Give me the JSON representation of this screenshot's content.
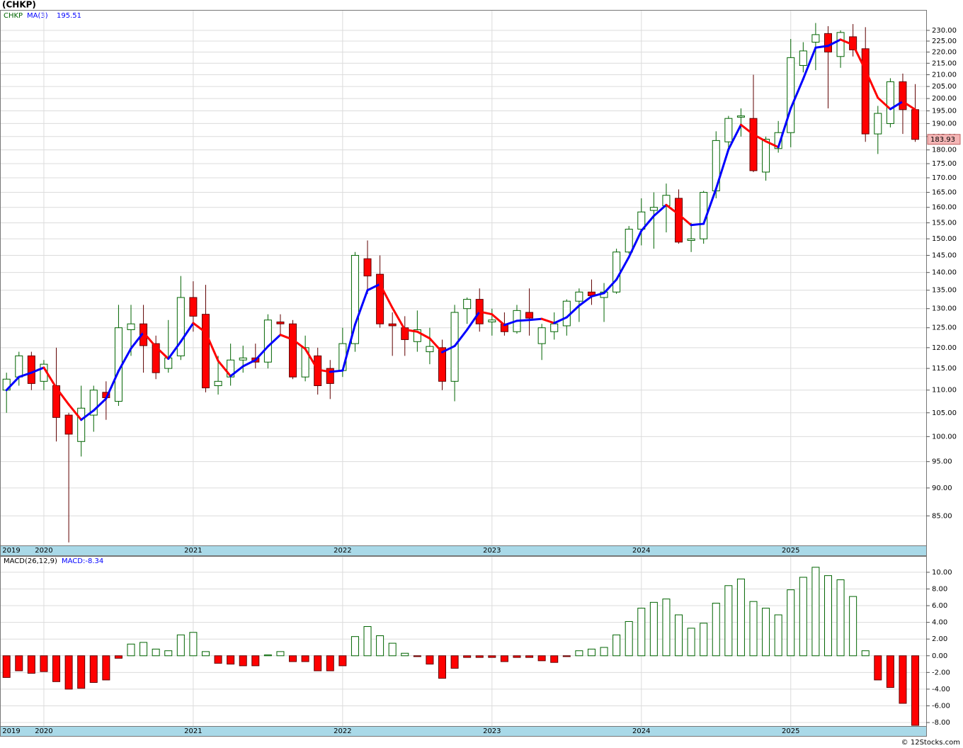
{
  "chart_data": [
    {
      "type": "candlestick",
      "title": "(CHKP)",
      "symbol": "CHKP",
      "footer": "© 12Stocks.com",
      "categories": [
        "2019",
        null,
        null,
        "2020",
        null,
        null,
        null,
        null,
        null,
        null,
        null,
        null,
        null,
        null,
        null,
        "2021",
        null,
        null,
        null,
        null,
        null,
        null,
        null,
        null,
        null,
        null,
        null,
        "2022",
        null,
        null,
        null,
        null,
        null,
        null,
        null,
        null,
        null,
        null,
        null,
        "2023",
        null,
        null,
        null,
        null,
        null,
        null,
        null,
        null,
        null,
        null,
        null,
        "2024",
        null,
        null,
        null,
        null,
        null,
        null,
        null,
        null,
        null,
        null,
        null,
        "2025",
        null,
        null,
        null,
        null,
        null,
        null,
        null,
        null,
        null,
        null
      ],
      "open": [
        110,
        113,
        118,
        112,
        111,
        104.5,
        99,
        104.5,
        109.5,
        107.5,
        124.5,
        126,
        121,
        115,
        118,
        133,
        128.5,
        111,
        113,
        117,
        117.5,
        116.5,
        126.5,
        126,
        113,
        118,
        115,
        114.5,
        121,
        144,
        139.5,
        126,
        125,
        121.5,
        119,
        120,
        112,
        130,
        132.5,
        126.5,
        126,
        124,
        129,
        121,
        124,
        125.5,
        132,
        134.5,
        133,
        134.5,
        146,
        153,
        159,
        160.5,
        163,
        149.5,
        150,
        165.5,
        183,
        192.5,
        192,
        172,
        180.5,
        186.5,
        214,
        224.5,
        228.5,
        218,
        227,
        221.5,
        186,
        190,
        207,
        195.5
      ],
      "high": [
        114,
        119,
        119,
        117,
        120,
        105,
        111,
        111,
        112,
        131,
        131,
        131,
        123,
        127,
        139,
        137.5,
        136.5,
        118,
        121,
        120.5,
        121,
        128.5,
        128.5,
        127,
        123,
        120,
        117,
        125,
        146,
        149.5,
        145,
        129,
        128,
        129.5,
        125,
        122,
        131,
        133,
        135.5,
        130,
        129,
        131,
        135.5,
        126,
        129,
        132.5,
        135.5,
        138,
        137,
        147,
        154,
        163,
        165,
        168,
        166,
        155,
        165.5,
        187,
        193,
        196,
        210,
        185,
        191,
        226,
        224.5,
        233.5,
        232,
        230,
        233,
        231.5,
        197,
        208.5,
        210.5,
        206
      ],
      "low": [
        105,
        111,
        110,
        110,
        99,
        80.5,
        96,
        101,
        103.5,
        106.5,
        118,
        114,
        112.5,
        114,
        117,
        124,
        109.5,
        109,
        111,
        114,
        115,
        115,
        123,
        112.5,
        112,
        109,
        108,
        113,
        119,
        134,
        125,
        118,
        118,
        119,
        116,
        110,
        107.5,
        126,
        124,
        123,
        123,
        123.5,
        123,
        117,
        122,
        123,
        126.5,
        131,
        126.5,
        134,
        145.5,
        148,
        147,
        152,
        148.5,
        146,
        148.5,
        163,
        180,
        185,
        172,
        169,
        179,
        181,
        211,
        212,
        196,
        213,
        218,
        183,
        178.5,
        188.5,
        186,
        183
      ],
      "close": [
        112.5,
        118,
        111.5,
        116,
        104,
        100.5,
        106,
        110,
        108.3,
        125,
        126,
        120.5,
        114,
        117.5,
        133,
        128,
        110.5,
        112,
        117,
        117.5,
        116.5,
        127,
        126,
        113,
        120,
        111,
        111.5,
        121,
        145,
        139,
        126,
        125.5,
        122,
        124.5,
        120.3,
        112,
        129,
        132.5,
        126,
        127,
        124,
        129.5,
        127.5,
        125,
        126,
        132,
        134.5,
        133.5,
        134.5,
        146,
        153,
        158.5,
        160,
        164,
        149,
        150,
        165,
        183.5,
        192,
        193,
        172.5,
        184,
        186.5,
        217.5,
        220.5,
        228,
        220,
        229,
        221,
        186,
        194,
        207,
        195.5,
        183.93
      ],
      "up_color": "#006400",
      "down_color": "#ff0000",
      "down_outline": "#600000",
      "ma": {
        "name": "MA(3)",
        "up_color": "#0000ff",
        "down_color": "#ff0000",
        "values": [
          110,
          113,
          114,
          115.2,
          110.5,
          106.8,
          103.5,
          105.5,
          108.1,
          114.4,
          119.8,
          123.8,
          120.2,
          117.3,
          121.5,
          126.2,
          123.8,
          116.8,
          113.2,
          115.5,
          117,
          120.3,
          123.2,
          122,
          119.7,
          114.7,
          114.2,
          114.5,
          125.8,
          135,
          136.7,
          130.2,
          124.5,
          124,
          122.3,
          118.9,
          120.4,
          124.5,
          129.2,
          128.5,
          125.7,
          126.8,
          127,
          127.3,
          126.2,
          127.7,
          130.8,
          133.3,
          134.2,
          138,
          144.5,
          152.5,
          157.2,
          160.8,
          157.7,
          154.3,
          154.7,
          166.2,
          180.2,
          189.5,
          185.8,
          183.2,
          181,
          196,
          208.2,
          222,
          222.8,
          225.7,
          223.3,
          212,
          200.3,
          195.7,
          198.8,
          195.51
        ]
      },
      "log_scale": true,
      "grid": true,
      "ylim": [
        80,
        239.5
      ],
      "yticks": [
        {
          "value": 85,
          "label": "85.00"
        },
        {
          "value": 90,
          "label": "90.00"
        },
        {
          "value": 95,
          "label": "95.00"
        },
        {
          "value": 100,
          "label": "100.00"
        },
        {
          "value": 105,
          "label": "105.00"
        },
        {
          "value": 110,
          "label": "110.00"
        },
        {
          "value": 115,
          "label": "115.00"
        },
        {
          "value": 120,
          "label": "120.00"
        },
        {
          "value": 125,
          "label": "125.00"
        },
        {
          "value": 130,
          "label": "130.00"
        },
        {
          "value": 135,
          "label": "135.00"
        },
        {
          "value": 140,
          "label": "140.00"
        },
        {
          "value": 145,
          "label": "145.00"
        },
        {
          "value": 150,
          "label": "150.00"
        },
        {
          "value": 155,
          "label": "155.00"
        },
        {
          "value": 160,
          "label": "160.00"
        },
        {
          "value": 165,
          "label": "165.00"
        },
        {
          "value": 170,
          "label": "170.00"
        },
        {
          "value": 175,
          "label": "175.00"
        },
        {
          "value": 180,
          "label": "180.00"
        },
        {
          "value": 185,
          "label": "185.00"
        },
        {
          "value": 190,
          "label": "190.00"
        },
        {
          "value": 195,
          "label": "195.00"
        },
        {
          "value": 200,
          "label": "200.00"
        },
        {
          "value": 205,
          "label": "205.00"
        },
        {
          "value": 210,
          "label": "210.00"
        },
        {
          "value": 215,
          "label": "215.00"
        },
        {
          "value": 220,
          "label": "220.00"
        },
        {
          "value": 225,
          "label": "225.00"
        },
        {
          "value": 230,
          "label": "230.00"
        }
      ]
    },
    {
      "type": "bar",
      "title": "MACD(26,12,9)",
      "value_prefix": "MACD:",
      "categories": [
        "2019",
        null,
        null,
        "2020",
        null,
        null,
        null,
        null,
        null,
        null,
        null,
        null,
        null,
        null,
        null,
        "2021",
        null,
        null,
        null,
        null,
        null,
        null,
        null,
        null,
        null,
        null,
        null,
        "2022",
        null,
        null,
        null,
        null,
        null,
        null,
        null,
        null,
        null,
        null,
        null,
        "2023",
        null,
        null,
        null,
        null,
        null,
        null,
        null,
        null,
        null,
        null,
        null,
        "2024",
        null,
        null,
        null,
        null,
        null,
        null,
        null,
        null,
        null,
        null,
        null,
        "2025",
        null,
        null,
        null,
        null,
        null,
        null,
        null,
        null,
        null,
        null
      ],
      "values": [
        -2.6,
        -1.8,
        -2.1,
        -1.9,
        -3.1,
        -4,
        -3.9,
        -3.2,
        -2.9,
        -0.3,
        1.4,
        1.6,
        0.8,
        0.6,
        2.5,
        2.8,
        0.5,
        -0.9,
        -1,
        -1.2,
        -1.2,
        0.1,
        0.5,
        -0.7,
        -0.7,
        -1.8,
        -1.8,
        -1.2,
        2.3,
        3.5,
        2.4,
        1.5,
        0.3,
        -0.1,
        -1,
        -2.7,
        -1.5,
        -0.2,
        -0.2,
        -0.2,
        -0.7,
        -0.2,
        -0.2,
        -0.6,
        -0.8,
        -0.1,
        0.6,
        0.8,
        1,
        2.5,
        4.1,
        5.7,
        6.4,
        6.8,
        4.9,
        3.3,
        3.9,
        6.3,
        8.4,
        9.2,
        6.5,
        5.7,
        4.9,
        7.9,
        9.4,
        10.6,
        9.6,
        9.1,
        7.1,
        0.6,
        -2.9,
        -3.8,
        -5.7,
        -8.34
      ],
      "pos_color": "#006400",
      "neg_color": "#ff0000",
      "neg_outline": "#600000",
      "grid": true,
      "ylim": [
        -8.42,
        11.86
      ],
      "yticks": [
        {
          "value": -8,
          "label": "-8.00"
        },
        {
          "value": -6,
          "label": "-6.00"
        },
        {
          "value": -4,
          "label": "-4.00"
        },
        {
          "value": -2,
          "label": "-2.00"
        },
        {
          "value": 0,
          "label": "0.00"
        },
        {
          "value": 2,
          "label": "2.00"
        },
        {
          "value": 4,
          "label": "4.00"
        },
        {
          "value": 6,
          "label": "6.00"
        },
        {
          "value": 8,
          "label": "8.00"
        },
        {
          "value": 10,
          "label": "10.00"
        }
      ]
    }
  ]
}
